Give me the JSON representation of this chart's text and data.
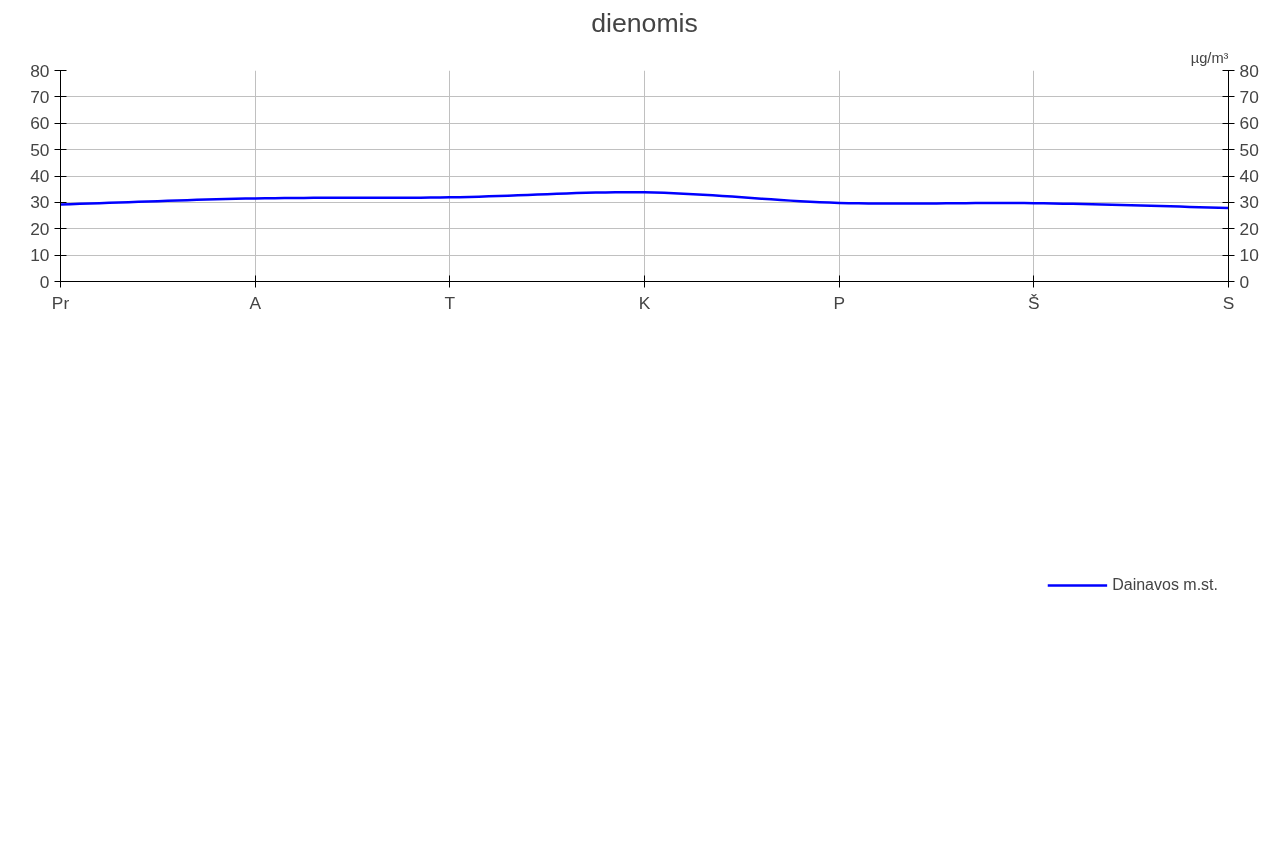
{
  "chart_data": {
    "type": "line",
    "title": "dienomis",
    "y2label": "µg/m³",
    "categories": [
      "Pr",
      "A",
      "T",
      "K",
      "P",
      "Š",
      "S"
    ],
    "series": [
      {
        "name": "Dainavos m.st.",
        "color": "#0000ff",
        "values": [
          29.2,
          31.5,
          31.9,
          33.8,
          29.8,
          29.7,
          27.9
        ]
      }
    ],
    "ylim": [
      0,
      80
    ],
    "yticks": [
      0,
      10,
      20,
      30,
      40,
      50,
      60,
      70,
      80
    ],
    "y2lim": [
      0,
      80
    ],
    "y2ticks": [
      0,
      10,
      20,
      30,
      40,
      50,
      60,
      70,
      80
    ],
    "grid": true,
    "legend": "bottom",
    "marker": "none",
    "line_style": "solid"
  }
}
